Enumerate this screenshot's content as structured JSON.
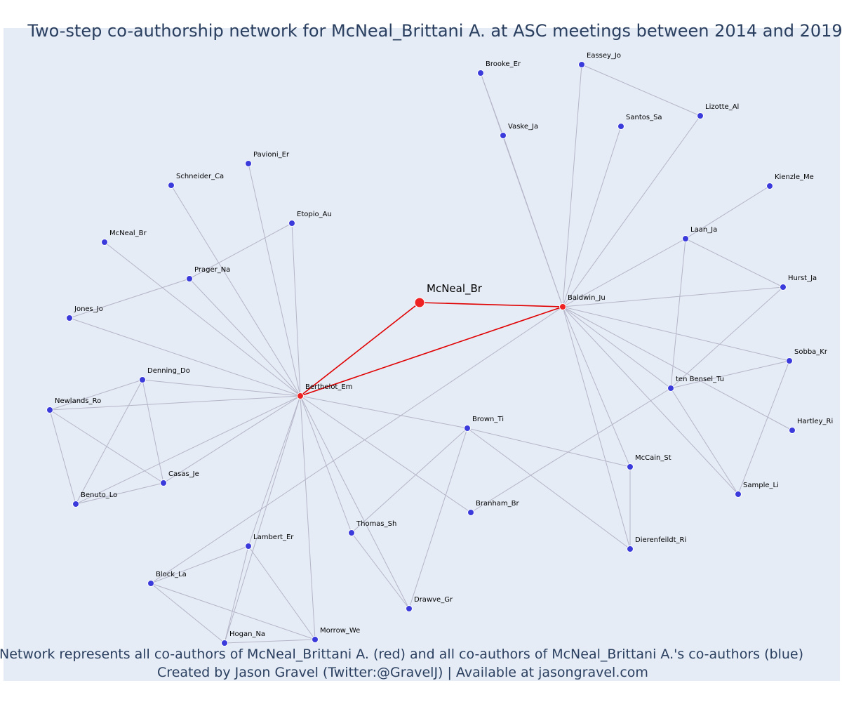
{
  "title": "Two-step co-authorship network for McNeal_Brittani A. at ASC meetings between 2014 and 2019",
  "footer": {
    "line1": "Network represents all co-authors of McNeal_Brittani A. (red) and all co-authors of McNeal_Brittani A.'s co-authors (blue)",
    "line2": "Created by Jason Gravel (Twitter:@GravelJ) | Available at jasongravel.com"
  },
  "colors": {
    "background": "#e5ecf6",
    "edge": "#b5b5c8",
    "red_edge": "#e00000",
    "red_node": "#ee2222",
    "blue_node": "#3b3bdc",
    "title": "#2a3f5f"
  },
  "nodes": [
    {
      "id": "McNeal_Br_center",
      "label": "McNeal_Br",
      "group": "ego"
    },
    {
      "id": "Baldwin_Ju",
      "label": "Baldwin_Ju",
      "group": "red"
    },
    {
      "id": "Berthelot_Em",
      "label": "Berthelot_Em",
      "group": "red"
    },
    {
      "id": "Brooke_Er",
      "label": "Brooke_Er",
      "group": "blue"
    },
    {
      "id": "Eassey_Jo",
      "label": "Eassey_Jo",
      "group": "blue"
    },
    {
      "id": "Vaske_Ja",
      "label": "Vaske_Ja",
      "group": "blue"
    },
    {
      "id": "Santos_Sa",
      "label": "Santos_Sa",
      "group": "blue"
    },
    {
      "id": "Lizotte_Al",
      "label": "Lizotte_Al",
      "group": "blue"
    },
    {
      "id": "Kienzle_Me",
      "label": "Kienzle_Me",
      "group": "blue"
    },
    {
      "id": "Laan_Ja",
      "label": "Laan_Ja",
      "group": "blue"
    },
    {
      "id": "Hurst_Ja",
      "label": "Hurst_Ja",
      "group": "blue"
    },
    {
      "id": "Sobba_Kr",
      "label": "Sobba_Kr",
      "group": "blue"
    },
    {
      "id": "ten_Bensel_Tu",
      "label": "ten Bensel_Tu",
      "group": "blue"
    },
    {
      "id": "Hartley_Ri",
      "label": "Hartley_Ri",
      "group": "blue"
    },
    {
      "id": "Sample_Li",
      "label": "Sample_Li",
      "group": "blue"
    },
    {
      "id": "McCain_St",
      "label": "McCain_St",
      "group": "blue"
    },
    {
      "id": "Dierenfeildt_Ri",
      "label": "Dierenfeildt_Ri",
      "group": "blue"
    },
    {
      "id": "Brown_Ti",
      "label": "Brown_Ti",
      "group": "blue"
    },
    {
      "id": "Branham_Br",
      "label": "Branham_Br",
      "group": "blue"
    },
    {
      "id": "Thomas_Sh",
      "label": "Thomas_Sh",
      "group": "blue"
    },
    {
      "id": "Drawve_Gr",
      "label": "Drawve_Gr",
      "group": "blue"
    },
    {
      "id": "Pavioni_Er",
      "label": "Pavioni_Er",
      "group": "blue"
    },
    {
      "id": "Schneider_Ca",
      "label": "Schneider_Ca",
      "group": "blue"
    },
    {
      "id": "Etopio_Au",
      "label": "Etopio_Au",
      "group": "blue"
    },
    {
      "id": "McNeal_Br_2",
      "label": "McNeal_Br",
      "group": "blue"
    },
    {
      "id": "Prager_Na",
      "label": "Prager_Na",
      "group": "blue"
    },
    {
      "id": "Jones_Jo",
      "label": "Jones_Jo",
      "group": "blue"
    },
    {
      "id": "Denning_Do",
      "label": "Denning_Do",
      "group": "blue"
    },
    {
      "id": "Newlands_Ro",
      "label": "Newlands_Ro",
      "group": "blue"
    },
    {
      "id": "Casas_Je",
      "label": "Casas_Je",
      "group": "blue"
    },
    {
      "id": "Benuto_Lo",
      "label": "Benuto_Lo",
      "group": "blue"
    },
    {
      "id": "Lambert_Er",
      "label": "Lambert_Er",
      "group": "blue"
    },
    {
      "id": "Block_La",
      "label": "Block_La",
      "group": "blue"
    },
    {
      "id": "Hogan_Na",
      "label": "Hogan_Na",
      "group": "blue"
    },
    {
      "id": "Morrow_We",
      "label": "Morrow_We",
      "group": "blue"
    }
  ],
  "edges": [
    [
      "McNeal_Br_center",
      "Baldwin_Ju",
      "red"
    ],
    [
      "McNeal_Br_center",
      "Berthelot_Em",
      "red"
    ],
    [
      "Baldwin_Ju",
      "Berthelot_Em",
      "red"
    ],
    [
      "Baldwin_Ju",
      "Brooke_Er",
      "grey"
    ],
    [
      "Baldwin_Ju",
      "Vaske_Ja",
      "grey"
    ],
    [
      "Baldwin_Ju",
      "Eassey_Jo",
      "grey"
    ],
    [
      "Baldwin_Ju",
      "Santos_Sa",
      "grey"
    ],
    [
      "Baldwin_Ju",
      "Lizotte_Al",
      "grey"
    ],
    [
      "Baldwin_Ju",
      "Laan_Ja",
      "grey"
    ],
    [
      "Baldwin_Ju",
      "Hurst_Ja",
      "grey"
    ],
    [
      "Baldwin_Ju",
      "Sobba_Kr",
      "grey"
    ],
    [
      "Baldwin_Ju",
      "ten_Bensel_Tu",
      "grey"
    ],
    [
      "Baldwin_Ju",
      "Hartley_Ri",
      "grey"
    ],
    [
      "Baldwin_Ju",
      "Sample_Li",
      "grey"
    ],
    [
      "Baldwin_Ju",
      "McCain_St",
      "grey"
    ],
    [
      "Baldwin_Ju",
      "Dierenfeildt_Ri",
      "grey"
    ],
    [
      "Baldwin_Ju",
      "Block_La",
      "grey"
    ],
    [
      "Brooke_Er",
      "Vaske_Ja",
      "grey"
    ],
    [
      "Eassey_Jo",
      "Lizotte_Al",
      "grey"
    ],
    [
      "Kienzle_Me",
      "Laan_Ja",
      "grey"
    ],
    [
      "Laan_Ja",
      "ten_Bensel_Tu",
      "grey"
    ],
    [
      "Laan_Ja",
      "Hurst_Ja",
      "grey"
    ],
    [
      "Hurst_Ja",
      "ten_Bensel_Tu",
      "grey"
    ],
    [
      "ten_Bensel_Tu",
      "Sobba_Kr",
      "grey"
    ],
    [
      "ten_Bensel_Tu",
      "Sample_Li",
      "grey"
    ],
    [
      "ten_Bensel_Tu",
      "Branham_Br",
      "grey"
    ],
    [
      "Sobba_Kr",
      "Sample_Li",
      "grey"
    ],
    [
      "McCain_St",
      "Dierenfeildt_Ri",
      "grey"
    ],
    [
      "Brown_Ti",
      "McCain_St",
      "grey"
    ],
    [
      "Brown_Ti",
      "Dierenfeildt_Ri",
      "grey"
    ],
    [
      "Brown_Ti",
      "Thomas_Sh",
      "grey"
    ],
    [
      "Brown_Ti",
      "Drawve_Gr",
      "grey"
    ],
    [
      "Thomas_Sh",
      "Drawve_Gr",
      "grey"
    ],
    [
      "Berthelot_Em",
      "Brown_Ti",
      "grey"
    ],
    [
      "Berthelot_Em",
      "Branham_Br",
      "grey"
    ],
    [
      "Berthelot_Em",
      "Thomas_Sh",
      "grey"
    ],
    [
      "Berthelot_Em",
      "Drawve_Gr",
      "grey"
    ],
    [
      "Berthelot_Em",
      "Pavioni_Er",
      "grey"
    ],
    [
      "Berthelot_Em",
      "Schneider_Ca",
      "grey"
    ],
    [
      "Berthelot_Em",
      "Etopio_Au",
      "grey"
    ],
    [
      "Berthelot_Em",
      "McNeal_Br_2",
      "grey"
    ],
    [
      "Berthelot_Em",
      "Prager_Na",
      "grey"
    ],
    [
      "Berthelot_Em",
      "Jones_Jo",
      "grey"
    ],
    [
      "Berthelot_Em",
      "Denning_Do",
      "grey"
    ],
    [
      "Berthelot_Em",
      "Newlands_Ro",
      "grey"
    ],
    [
      "Berthelot_Em",
      "Casas_Je",
      "grey"
    ],
    [
      "Berthelot_Em",
      "Benuto_Lo",
      "grey"
    ],
    [
      "Berthelot_Em",
      "Lambert_Er",
      "grey"
    ],
    [
      "Berthelot_Em",
      "Hogan_Na",
      "grey"
    ],
    [
      "Berthelot_Em",
      "Morrow_We",
      "grey"
    ],
    [
      "Prager_Na",
      "Etopio_Au",
      "grey"
    ],
    [
      "Prager_Na",
      "Jones_Jo",
      "grey"
    ],
    [
      "Denning_Do",
      "Newlands_Ro",
      "grey"
    ],
    [
      "Denning_Do",
      "Casas_Je",
      "grey"
    ],
    [
      "Denning_Do",
      "Benuto_Lo",
      "grey"
    ],
    [
      "Newlands_Ro",
      "Casas_Je",
      "grey"
    ],
    [
      "Newlands_Ro",
      "Benuto_Lo",
      "grey"
    ],
    [
      "Casas_Je",
      "Benuto_Lo",
      "grey"
    ],
    [
      "Lambert_Er",
      "Block_La",
      "grey"
    ],
    [
      "Lambert_Er",
      "Hogan_Na",
      "grey"
    ],
    [
      "Lambert_Er",
      "Morrow_We",
      "grey"
    ],
    [
      "Block_La",
      "Hogan_Na",
      "grey"
    ],
    [
      "Block_La",
      "Morrow_We",
      "grey"
    ],
    [
      "Hogan_Na",
      "Morrow_We",
      "grey"
    ]
  ]
}
